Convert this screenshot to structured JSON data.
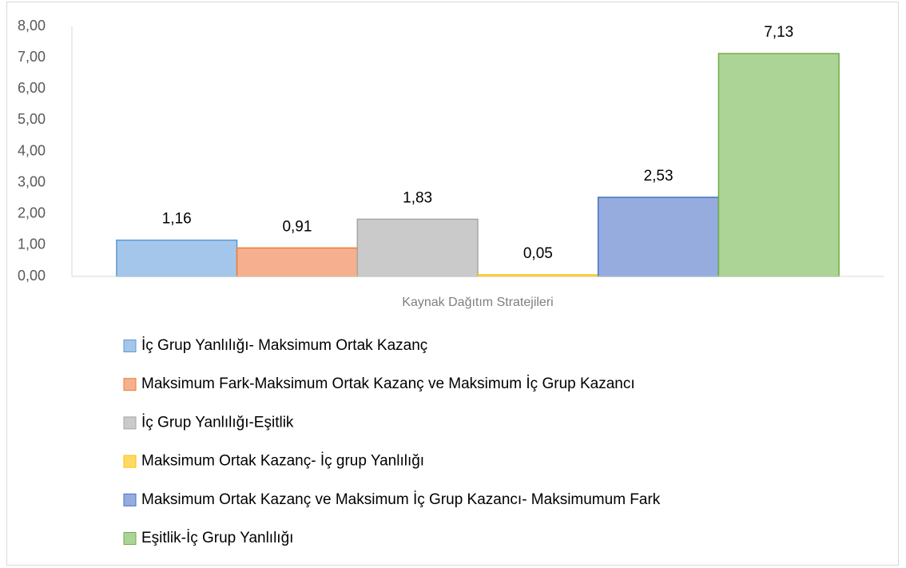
{
  "chart_data": {
    "type": "bar",
    "categories": [
      "Kaynak Dağıtım Stratejileri"
    ],
    "series": [
      {
        "name": "İç Grup Yanlılığı- Maksimum Ortak Kazanç",
        "color": "#a4c6eb",
        "border_color": "#5b9bd5",
        "values": [
          1.16
        ],
        "value_labels": [
          "1,16"
        ]
      },
      {
        "name": "Maksimum Fark-Maksimum Ortak Kazanç ve Maksimum İç Grup Kazancı",
        "color": "#f6b08f",
        "border_color": "#ed7d31",
        "values": [
          0.91
        ],
        "value_labels": [
          "0,91"
        ]
      },
      {
        "name": "İç Grup Yanlılığı-Eşitlik",
        "color": "#cacaca",
        "border_color": "#a5a5a5",
        "values": [
          1.83
        ],
        "value_labels": [
          "1,83"
        ]
      },
      {
        "name": "Maksimum Ortak Kazanç- İç grup Yanlılığı",
        "color": "#ffd966",
        "border_color": "#ffc000",
        "values": [
          0.05
        ],
        "value_labels": [
          "0,05"
        ]
      },
      {
        "name": "Maksimum Ortak Kazanç ve Maksimum İç Grup Kazancı- Maksimumum Fark",
        "color": "#96acdf",
        "border_color": "#4472c4",
        "values": [
          2.53
        ],
        "value_labels": [
          "2,53"
        ]
      },
      {
        "name": "Eşitlik-İç Grup Yanlılığı",
        "color": "#acd497",
        "border_color": "#70ad47",
        "values": [
          7.13
        ],
        "value_labels": [
          "7,13"
        ]
      }
    ],
    "ylim": [
      0,
      8
    ],
    "yticks": [
      {
        "value": 0,
        "label": "0,00"
      },
      {
        "value": 1,
        "label": "1,00"
      },
      {
        "value": 2,
        "label": "2,00"
      },
      {
        "value": 3,
        "label": "3,00"
      },
      {
        "value": 4,
        "label": "4,00"
      },
      {
        "value": 5,
        "label": "5,00"
      },
      {
        "value": 6,
        "label": "6,00"
      },
      {
        "value": 7,
        "label": "7,00"
      },
      {
        "value": 8,
        "label": "8,00"
      }
    ],
    "grid": false,
    "legend": "bottom"
  }
}
